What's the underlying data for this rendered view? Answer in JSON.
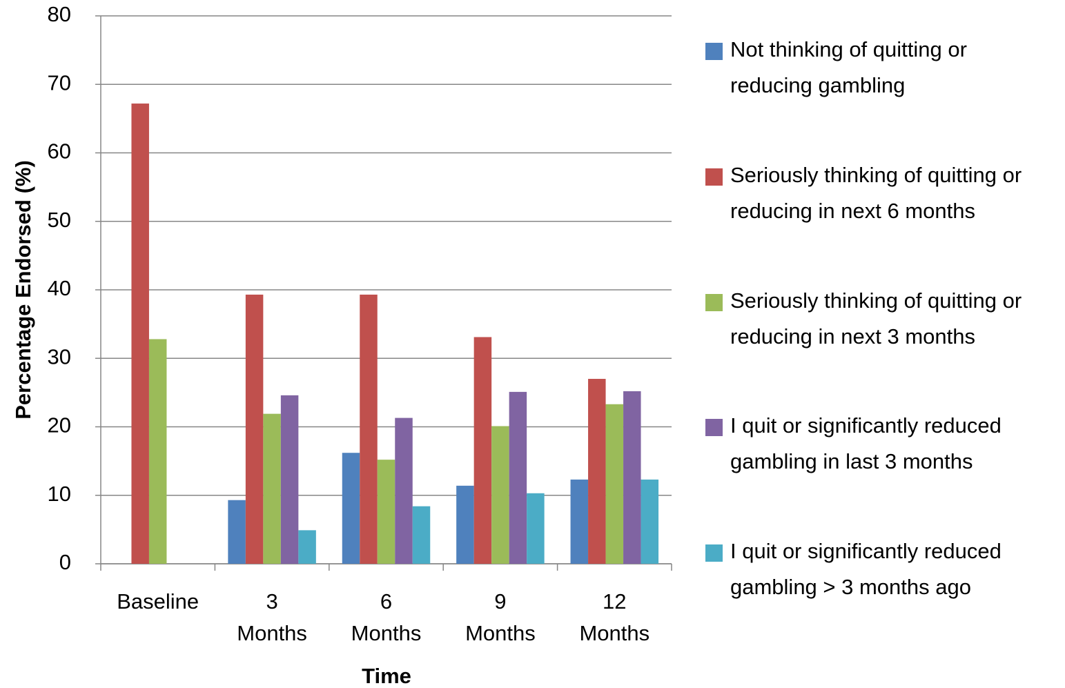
{
  "chart_data": {
    "type": "bar",
    "y_label": "Percentage Endorsed (%)",
    "x_label": "Time",
    "categories": [
      "Baseline",
      "3 Months",
      "6 Months",
      "9 Months",
      "12 Months"
    ],
    "series": [
      {
        "name": "Not thinking of quitting or reducing gambling",
        "color": "#4f81bd",
        "values": [
          null,
          9.3,
          16.2,
          11.4,
          12.3
        ]
      },
      {
        "name": "Seriously thinking of quitting or reducing in next 6 months",
        "color": "#c0504d",
        "values": [
          67.2,
          39.3,
          39.3,
          33.1,
          27.0
        ]
      },
      {
        "name": "Seriously thinking of quitting or reducing in next 3 months",
        "color": "#9bbb59",
        "values": [
          32.8,
          21.9,
          15.2,
          20.1,
          23.3
        ]
      },
      {
        "name": "I quit or significantly reduced gambling in last 3 months",
        "color": "#8064a2",
        "values": [
          null,
          24.6,
          21.3,
          25.1,
          25.2
        ]
      },
      {
        "name": "I quit or significantly reduced gambling > 3 months ago",
        "color": "#4bacc6",
        "values": [
          null,
          4.9,
          8.4,
          10.3,
          12.3
        ]
      }
    ],
    "ylim": [
      0,
      80
    ],
    "yticks": [
      0,
      10,
      20,
      30,
      40,
      50,
      60,
      70,
      80
    ],
    "grid": true,
    "legend": "right"
  }
}
